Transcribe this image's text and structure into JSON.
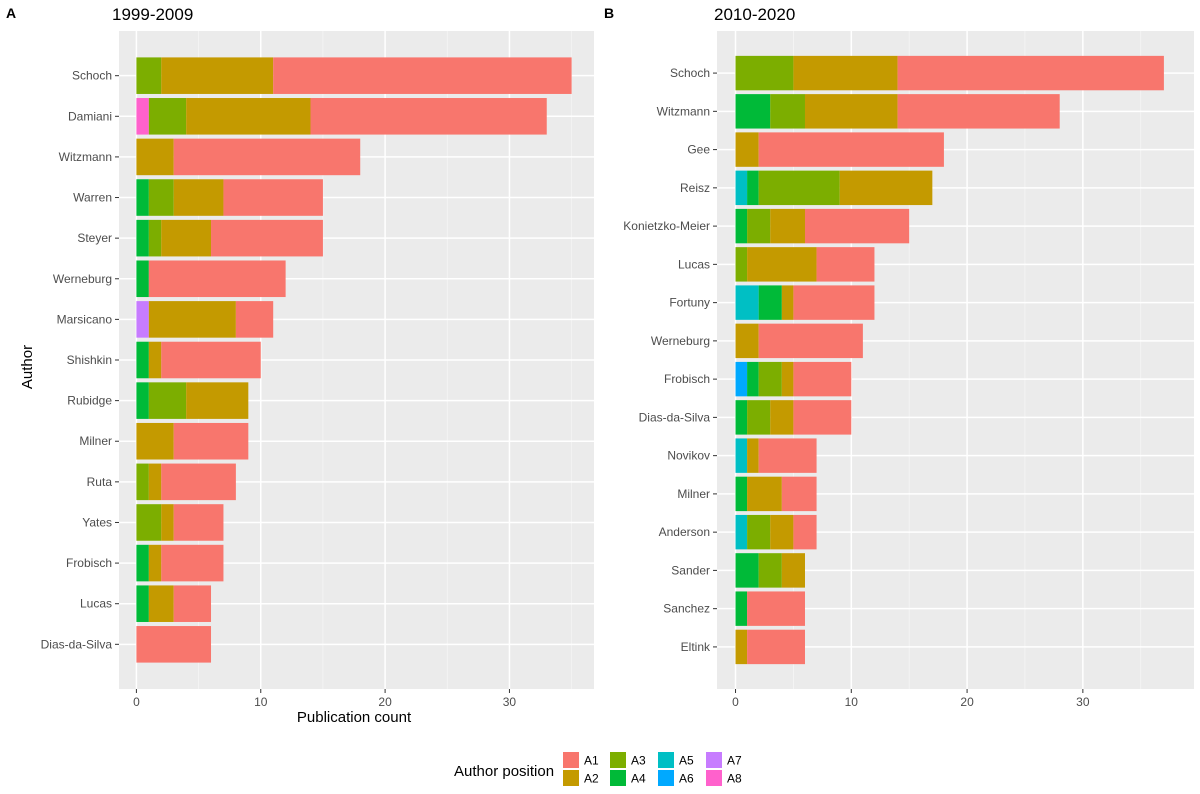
{
  "chart_data": [
    {
      "type": "bar",
      "orientation": "horizontal",
      "stacked": true,
      "tag": "A",
      "title": "1999-2009",
      "xlabel": "Publication count",
      "ylabel": "Author",
      "xlim": [
        -1.4,
        36.8
      ],
      "xticks": [
        0,
        10,
        20,
        30
      ],
      "categories": [
        "Schoch",
        "Damiani",
        "Witzmann",
        "Warren",
        "Steyer",
        "Werneburg",
        "Marsicano",
        "Shishkin",
        "Rubidge",
        "Milner",
        "Ruta",
        "Yates",
        "Frobisch",
        "Lucas",
        "Dias-da-Silva"
      ],
      "series": [
        {
          "name": "A8",
          "values": [
            0,
            1,
            0,
            0,
            0,
            0,
            0,
            0,
            0,
            0,
            0,
            0,
            0,
            0,
            0
          ]
        },
        {
          "name": "A7",
          "values": [
            0,
            0,
            0,
            0,
            0,
            0,
            1,
            0,
            0,
            0,
            0,
            0,
            0,
            0,
            0
          ]
        },
        {
          "name": "A6",
          "values": [
            0,
            0,
            0,
            0,
            0,
            0,
            0,
            0,
            0,
            0,
            0,
            0,
            0,
            0,
            0
          ]
        },
        {
          "name": "A5",
          "values": [
            0,
            0,
            0,
            0,
            0,
            0,
            0,
            0,
            0,
            0,
            0,
            0,
            0,
            0,
            0
          ]
        },
        {
          "name": "A4",
          "values": [
            0,
            0,
            0,
            1,
            1,
            1,
            0,
            1,
            1,
            0,
            0,
            0,
            1,
            1,
            0
          ]
        },
        {
          "name": "A3",
          "values": [
            2,
            3,
            0,
            2,
            1,
            0,
            0,
            0,
            3,
            0,
            1,
            2,
            0,
            0,
            0
          ]
        },
        {
          "name": "A2",
          "values": [
            9,
            10,
            3,
            4,
            4,
            0,
            7,
            1,
            5,
            3,
            1,
            1,
            1,
            2,
            0
          ]
        },
        {
          "name": "A1",
          "values": [
            24,
            19,
            15,
            8,
            9,
            11,
            3,
            8,
            0,
            6,
            6,
            4,
            5,
            3,
            6
          ]
        }
      ]
    },
    {
      "type": "bar",
      "orientation": "horizontal",
      "stacked": true,
      "tag": "B",
      "title": "2010-2020",
      "xlabel": "",
      "ylabel": "",
      "xlim": [
        -1.6,
        39.6
      ],
      "xticks": [
        0,
        10,
        20,
        30
      ],
      "categories": [
        "Schoch",
        "Witzmann",
        "Gee",
        "Reisz",
        "Konietzko-Meier",
        "Lucas",
        "Fortuny",
        "Werneburg",
        "Frobisch",
        "Dias-da-Silva",
        "Novikov",
        "Milner",
        "Anderson",
        "Sander",
        "Sanchez",
        "Eltink"
      ],
      "series": [
        {
          "name": "A8",
          "values": [
            0,
            0,
            0,
            0,
            0,
            0,
            0,
            0,
            0,
            0,
            0,
            0,
            0,
            0,
            0,
            0
          ]
        },
        {
          "name": "A7",
          "values": [
            0,
            0,
            0,
            0,
            0,
            0,
            0,
            0,
            0,
            0,
            0,
            0,
            0,
            0,
            0,
            0
          ]
        },
        {
          "name": "A6",
          "values": [
            0,
            0,
            0,
            0,
            0,
            0,
            0,
            0,
            1,
            0,
            0,
            0,
            0,
            0,
            0,
            0
          ]
        },
        {
          "name": "A5",
          "values": [
            0,
            0,
            0,
            1,
            0,
            0,
            2,
            0,
            0,
            0,
            1,
            0,
            1,
            0,
            0,
            0
          ]
        },
        {
          "name": "A4",
          "values": [
            0,
            3,
            0,
            1,
            1,
            0,
            2,
            0,
            1,
            1,
            0,
            1,
            0,
            2,
            1,
            0
          ]
        },
        {
          "name": "A3",
          "values": [
            5,
            3,
            0,
            7,
            2,
            1,
            0,
            0,
            2,
            2,
            0,
            0,
            2,
            2,
            0,
            0
          ]
        },
        {
          "name": "A2",
          "values": [
            9,
            8,
            2,
            8,
            3,
            6,
            1,
            2,
            1,
            2,
            1,
            3,
            2,
            2,
            0,
            1
          ]
        },
        {
          "name": "A1",
          "values": [
            23,
            14,
            16,
            0,
            9,
            5,
            7,
            9,
            5,
            5,
            5,
            3,
            2,
            0,
            5,
            5
          ]
        }
      ]
    }
  ],
  "legend": {
    "title": "Author position",
    "placement": "bottom",
    "items": [
      {
        "name": "A1",
        "color": "#F8766D"
      },
      {
        "name": "A2",
        "color": "#C49A00"
      },
      {
        "name": "A3",
        "color": "#7CAE00"
      },
      {
        "name": "A4",
        "color": "#00BA38"
      },
      {
        "name": "A5",
        "color": "#00BFC4"
      },
      {
        "name": "A6",
        "color": "#00A9FF"
      },
      {
        "name": "A7",
        "color": "#C77CFF"
      },
      {
        "name": "A8",
        "color": "#FF61CC"
      }
    ]
  },
  "colors": {
    "panel_background": "#EBEBEB",
    "grid_major": "#FFFFFF",
    "tick_text": "#4D4D4D"
  }
}
